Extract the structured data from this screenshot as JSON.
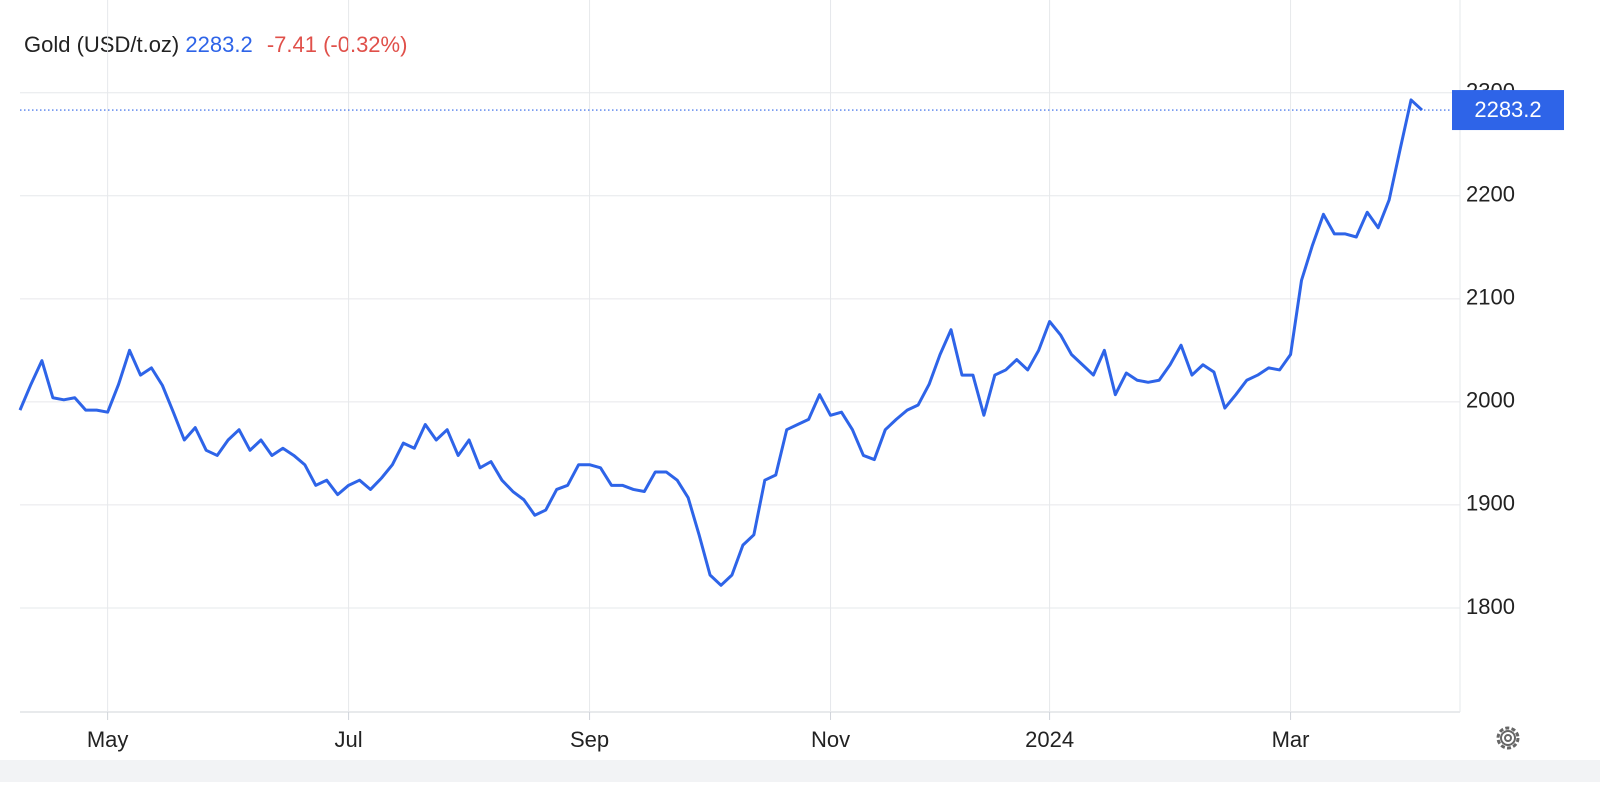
{
  "chart_data": {
    "type": "line",
    "title": "Gold (USD/t.oz)",
    "change": "-7.41 (-0.32%)",
    "color": "#2e64e8",
    "grid": true,
    "ylim": [
      1700,
      2390
    ],
    "yticks": [
      1800,
      1900,
      2000,
      2100,
      2200,
      2300
    ],
    "categories": [
      null,
      null,
      null,
      null,
      null,
      null,
      null,
      null,
      "May",
      null,
      null,
      null,
      null,
      null,
      null,
      null,
      null,
      null,
      null,
      null,
      null,
      null,
      null,
      null,
      null,
      null,
      null,
      null,
      null,
      null,
      "Jul",
      null,
      null,
      null,
      null,
      null,
      null,
      null,
      null,
      null,
      null,
      null,
      null,
      null,
      null,
      null,
      null,
      null,
      null,
      null,
      null,
      null,
      "Sep",
      null,
      null,
      null,
      null,
      null,
      null,
      null,
      null,
      null,
      null,
      null,
      null,
      null,
      null,
      null,
      null,
      null,
      null,
      null,
      null,
      null,
      "Nov",
      null,
      null,
      null,
      null,
      null,
      null,
      null,
      null,
      null,
      null,
      null,
      null,
      null,
      null,
      null,
      null,
      null,
      null,
      null,
      "2024",
      null,
      null,
      null,
      null,
      null,
      null,
      null,
      null,
      null,
      null,
      null,
      null,
      null,
      null,
      null,
      null,
      null,
      null,
      null,
      null,
      null,
      "Mar",
      null,
      null,
      null,
      null,
      null,
      null,
      null,
      null,
      null,
      null,
      null,
      null
    ],
    "values": [
      1992,
      2017,
      2040,
      2004,
      2002,
      2004,
      1992,
      1992,
      1990,
      2017,
      2050,
      2026,
      2033,
      2016,
      1990,
      1963,
      1975,
      1953,
      1948,
      1963,
      1973,
      1953,
      1963,
      1948,
      1955,
      1948,
      1939,
      1919,
      1924,
      1910,
      1919,
      1924,
      1915,
      1926,
      1939,
      1960,
      1955,
      1978,
      1963,
      1973,
      1948,
      1963,
      1936,
      1942,
      1924,
      1913,
      1905,
      1890,
      1895,
      1915,
      1919,
      1939,
      1939,
      1936,
      1919,
      1919,
      1915,
      1913,
      1932,
      1932,
      1924,
      1907,
      1871,
      1832,
      1822,
      1832,
      1861,
      1871,
      1924,
      1929,
      1973,
      1978,
      1983,
      2007,
      1987,
      1990,
      1973,
      1948,
      1944,
      1973,
      1983,
      1992,
      1997,
      2017,
      2046,
      2070,
      2026,
      2026,
      1987,
      2026,
      2031,
      2041,
      2031,
      2050,
      2078,
      2065,
      2046,
      2036,
      2026,
      2050,
      2007,
      2028,
      2021,
      2019,
      2021,
      2036,
      2055,
      2026,
      2036,
      2029,
      1994,
      2007,
      2021,
      2026,
      2033,
      2031,
      2046,
      2118,
      2152,
      2182,
      2163,
      2163,
      2160,
      2184,
      2169,
      2196,
      2245,
      2293,
      2283.2
    ]
  }
}
